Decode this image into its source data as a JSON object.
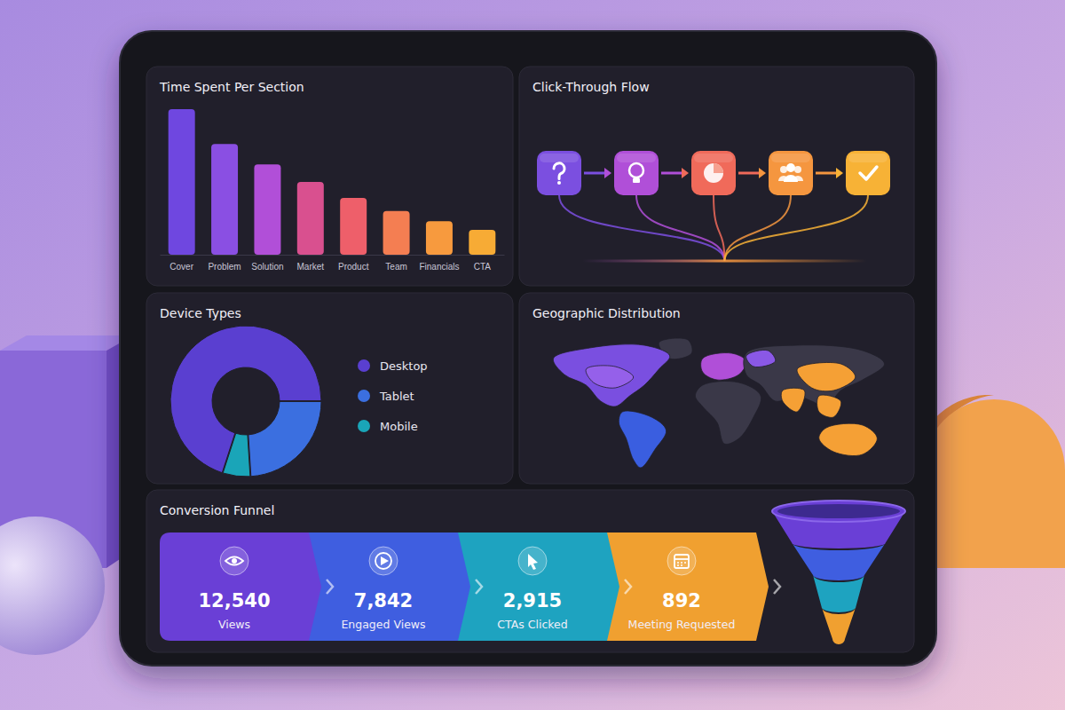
{
  "chart_data": [
    {
      "type": "bar",
      "title": "Time Spent Per Section",
      "categories": [
        "Cover",
        "Problem",
        "Solution",
        "Market",
        "Product",
        "Team",
        "Financials",
        "CTA"
      ],
      "values": [
        100,
        76,
        62,
        50,
        39,
        30,
        23,
        17
      ],
      "colors": [
        "#6f47e0",
        "#8a4fe3",
        "#b14fd8",
        "#d9508f",
        "#ee5f6a",
        "#f47e52",
        "#f79a3e",
        "#f7ab35"
      ],
      "tick_labels": "x",
      "grid": false
    },
    {
      "type": "flow",
      "title": "Click-Through Flow",
      "colors": [
        "#7b4fe0",
        "#b04fd8",
        "#f06a5a",
        "#f5963f",
        "#f7b236"
      ]
    },
    {
      "type": "donut",
      "title": "Device Types",
      "categories": [
        "Desktop",
        "Tablet",
        "Mobile"
      ],
      "values": [
        70,
        24,
        6
      ],
      "colors": [
        "#5a3fd0",
        "#3b6fe0",
        "#1aa5b8"
      ],
      "legend": "right",
      "data_labels": false
    },
    {
      "type": "map",
      "title": "Geographic Distribution"
    },
    {
      "type": "funnel",
      "title": "Conversion Funnel",
      "categories": [
        "Views",
        "Engaged Views",
        "CTAs Clicked",
        "Meeting Requested"
      ],
      "values": [
        12540,
        7842,
        2915,
        892
      ],
      "value_labels": [
        "12,540",
        "7,842",
        "2,915",
        "892"
      ],
      "colors": [
        "#6a3fd6",
        "#3f5ee0",
        "#1ea3c0",
        "#f0a030"
      ],
      "data_labels": true
    }
  ]
}
